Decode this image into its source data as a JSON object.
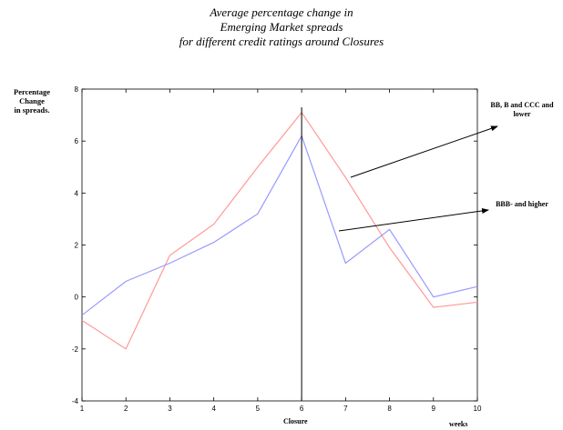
{
  "chart_data": {
    "type": "line",
    "title_lines": [
      "Average percentage change in",
      "Emerging Market spreads",
      "for different credit ratings around Closures"
    ],
    "ylabel_lines": [
      "Percentage",
      "Change",
      "in spreads."
    ],
    "xlabel": "Closure",
    "xunit_label": "weeks",
    "x": [
      1,
      2,
      3,
      4,
      5,
      6,
      7,
      8,
      9,
      10
    ],
    "xlim": [
      1,
      10
    ],
    "ylim": [
      -4,
      8
    ],
    "yticks": [
      -4,
      -2,
      0,
      2,
      4,
      6,
      8
    ],
    "xticks": [
      1,
      2,
      3,
      4,
      5,
      6,
      7,
      8,
      9,
      10
    ],
    "grid": false,
    "vertical_line_x": 6,
    "series": [
      {
        "values": [
          -0.9,
          -2.0,
          1.6,
          2.8,
          5.0,
          7.1,
          4.6,
          1.9,
          -0.4,
          -0.2
        ],
        "color": "#ff9999"
      },
      {
        "values": [
          -0.7,
          0.6,
          1.3,
          2.1,
          3.2,
          6.2,
          1.3,
          2.6,
          0.0,
          0.4
        ],
        "color": "#9999ff"
      }
    ],
    "annotations": [
      {
        "text_lines": [
          "BB, B and  CCC and",
          "lower"
        ]
      },
      {
        "text_lines": [
          "BBB- and higher"
        ]
      }
    ]
  }
}
